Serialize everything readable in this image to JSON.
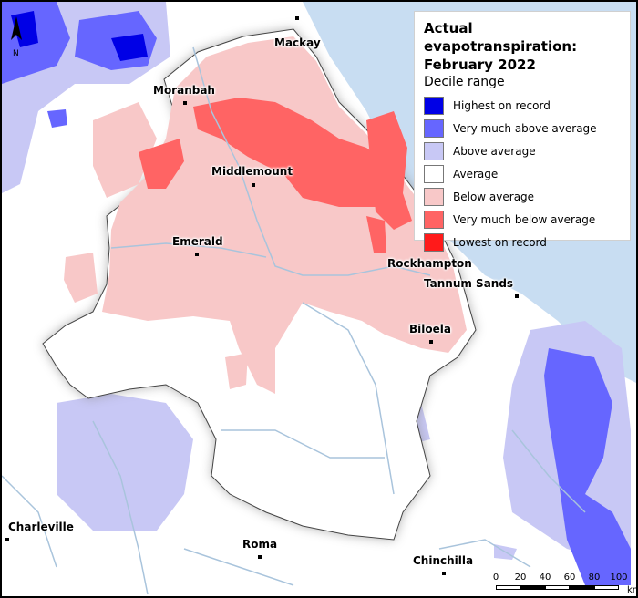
{
  "legend": {
    "title_line1": "Actual evapotranspiration:",
    "title_line2": "February 2022",
    "subtitle": "Decile range",
    "items": [
      {
        "label": "Highest on record",
        "color": "#0000e6"
      },
      {
        "label": "Very much above average",
        "color": "#6666ff"
      },
      {
        "label": "Above average",
        "color": "#c8c8f5"
      },
      {
        "label": "Average",
        "color": "#ffffff"
      },
      {
        "label": "Below average",
        "color": "#f8c8c8"
      },
      {
        "label": "Very much below average",
        "color": "#ff6464"
      },
      {
        "label": "Lowest on record",
        "color": "#ff1a1a"
      }
    ]
  },
  "towns": {
    "mackay": "Mackay",
    "moranbah": "Moranbah",
    "middlemount": "Middlemount",
    "emerald": "Emerald",
    "rockhampton": "Rockhampton",
    "tannum_sands": "Tannum Sands",
    "biloela": "Biloela",
    "charleville": "Charleville",
    "roma": "Roma",
    "chinchilla": "Chinchilla"
  },
  "scale_bar": {
    "ticks": [
      "0",
      "20",
      "40",
      "60",
      "80",
      "100"
    ],
    "unit": "km"
  },
  "north_arrow": {
    "label": "N"
  },
  "colors": {
    "sea": "#c8ddf2",
    "river": "#a9c4dc",
    "basin_outline": "#444444"
  }
}
